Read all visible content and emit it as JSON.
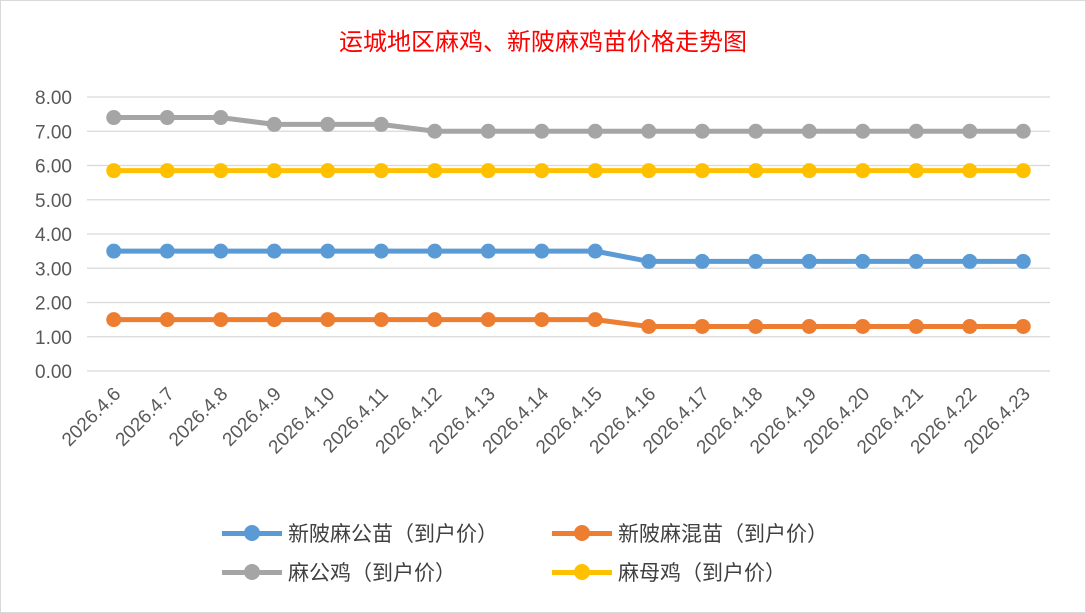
{
  "chart_data": {
    "type": "line",
    "title": "运城地区麻鸡、新陂麻鸡苗价格走势图",
    "xlabel": "",
    "ylabel": "",
    "ylim": [
      0,
      8
    ],
    "yticks": [
      "0.00",
      "1.00",
      "2.00",
      "3.00",
      "4.00",
      "5.00",
      "6.00",
      "7.00",
      "8.00"
    ],
    "grid": true,
    "legend_position": "bottom",
    "categories": [
      "2026.4.6",
      "2026.4.7",
      "2026.4.8",
      "2026.4.9",
      "2026.4.10",
      "2026.4.11",
      "2026.4.12",
      "2026.4.13",
      "2026.4.14",
      "2026.4.15",
      "2026.4.16",
      "2026.4.17",
      "2026.4.18",
      "2026.4.19",
      "2026.4.20",
      "2026.4.21",
      "2026.4.22",
      "2026.4.23"
    ],
    "series": [
      {
        "name": "新陂麻公苗（到户价）",
        "color": "#5b9bd5",
        "values": [
          3.5,
          3.5,
          3.5,
          3.5,
          3.5,
          3.5,
          3.5,
          3.5,
          3.5,
          3.5,
          3.2,
          3.2,
          3.2,
          3.2,
          3.2,
          3.2,
          3.2,
          3.2
        ]
      },
      {
        "name": "新陂麻混苗（到户价）",
        "color": "#ed7d31",
        "values": [
          1.5,
          1.5,
          1.5,
          1.5,
          1.5,
          1.5,
          1.5,
          1.5,
          1.5,
          1.5,
          1.3,
          1.3,
          1.3,
          1.3,
          1.3,
          1.3,
          1.3,
          1.3
        ]
      },
      {
        "name": "麻公鸡（到户价）",
        "color": "#a5a5a5",
        "values": [
          7.4,
          7.4,
          7.4,
          7.2,
          7.2,
          7.2,
          7.0,
          7.0,
          7.0,
          7.0,
          7.0,
          7.0,
          7.0,
          7.0,
          7.0,
          7.0,
          7.0,
          7.0
        ]
      },
      {
        "name": "麻母鸡（到户价）",
        "color": "#ffc000",
        "values": [
          5.85,
          5.85,
          5.85,
          5.85,
          5.85,
          5.85,
          5.85,
          5.85,
          5.85,
          5.85,
          5.85,
          5.85,
          5.85,
          5.85,
          5.85,
          5.85,
          5.85,
          5.85
        ]
      }
    ]
  }
}
